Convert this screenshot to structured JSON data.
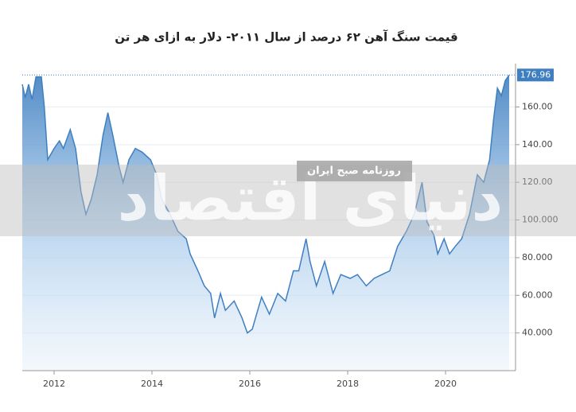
{
  "chart_data": {
    "type": "area",
    "title": "قیمت سنگ آهن ۶۲ درصد از سال ۲۰۱۱- دلار به ازای هر تن",
    "annotations": [
      "دنیای اقتصاد",
      "روزنامه صبح ایران"
    ],
    "color": "#3f7fc0",
    "grid": true,
    "xlim": [
      2011.35,
      2021.43
    ],
    "xticks": [
      2012,
      2014,
      2016,
      2018,
      2020
    ],
    "ylim": [
      20,
      183
    ],
    "yticks": [
      {
        "value": 40,
        "label": "40.000"
      },
      {
        "value": 60,
        "label": "60.000"
      },
      {
        "value": 80,
        "label": "80.000"
      },
      {
        "value": 100,
        "label": "100.000"
      },
      {
        "value": 120,
        "label": "120.00"
      },
      {
        "value": 140,
        "label": "140.00"
      },
      {
        "value": 160,
        "label": "160.00"
      }
    ],
    "x": [
      2011.35,
      2011.41,
      2011.48,
      2011.55,
      2011.63,
      2011.74,
      2011.8,
      2011.87,
      2012.0,
      2012.11,
      2012.19,
      2012.33,
      2012.44,
      2012.55,
      2012.65,
      2012.76,
      2012.88,
      2013.0,
      2013.1,
      2013.2,
      2013.33,
      2013.41,
      2013.53,
      2013.66,
      2013.8,
      2013.97,
      2014.1,
      2014.2,
      2014.37,
      2014.53,
      2014.7,
      2014.78,
      2014.94,
      2015.07,
      2015.2,
      2015.28,
      2015.4,
      2015.5,
      2015.68,
      2015.84,
      2015.95,
      2016.05,
      2016.16,
      2016.24,
      2016.4,
      2016.57,
      2016.73,
      2016.89,
      2017.0,
      2017.15,
      2017.23,
      2017.36,
      2017.53,
      2017.7,
      2017.86,
      2018.05,
      2018.2,
      2018.38,
      2018.54,
      2018.7,
      2018.86,
      2019.02,
      2019.2,
      2019.36,
      2019.52,
      2019.62,
      2019.76,
      2019.84,
      2019.97,
      2020.08,
      2020.2,
      2020.33,
      2020.49,
      2020.65,
      2020.78,
      2020.9,
      2020.98,
      2021.06,
      2021.14,
      2021.22,
      2021.3
    ],
    "values": [
      172,
      165,
      172,
      164,
      176,
      176,
      160,
      132,
      138,
      142,
      138,
      148,
      138,
      115,
      103,
      111,
      124,
      145,
      157,
      145,
      128,
      120,
      132,
      138,
      136,
      132,
      124,
      111,
      103,
      94,
      90,
      82,
      73,
      65,
      61,
      48,
      61,
      52,
      57,
      48,
      40,
      42,
      52,
      59,
      50,
      61,
      57,
      73,
      73,
      90,
      78,
      65,
      78,
      61,
      71,
      69,
      71,
      65,
      69,
      71,
      73,
      86,
      94,
      103,
      120,
      99,
      92,
      82,
      90,
      82,
      86,
      90,
      103,
      124,
      120,
      132,
      153,
      170,
      166,
      174,
      176.96
    ]
  }
}
